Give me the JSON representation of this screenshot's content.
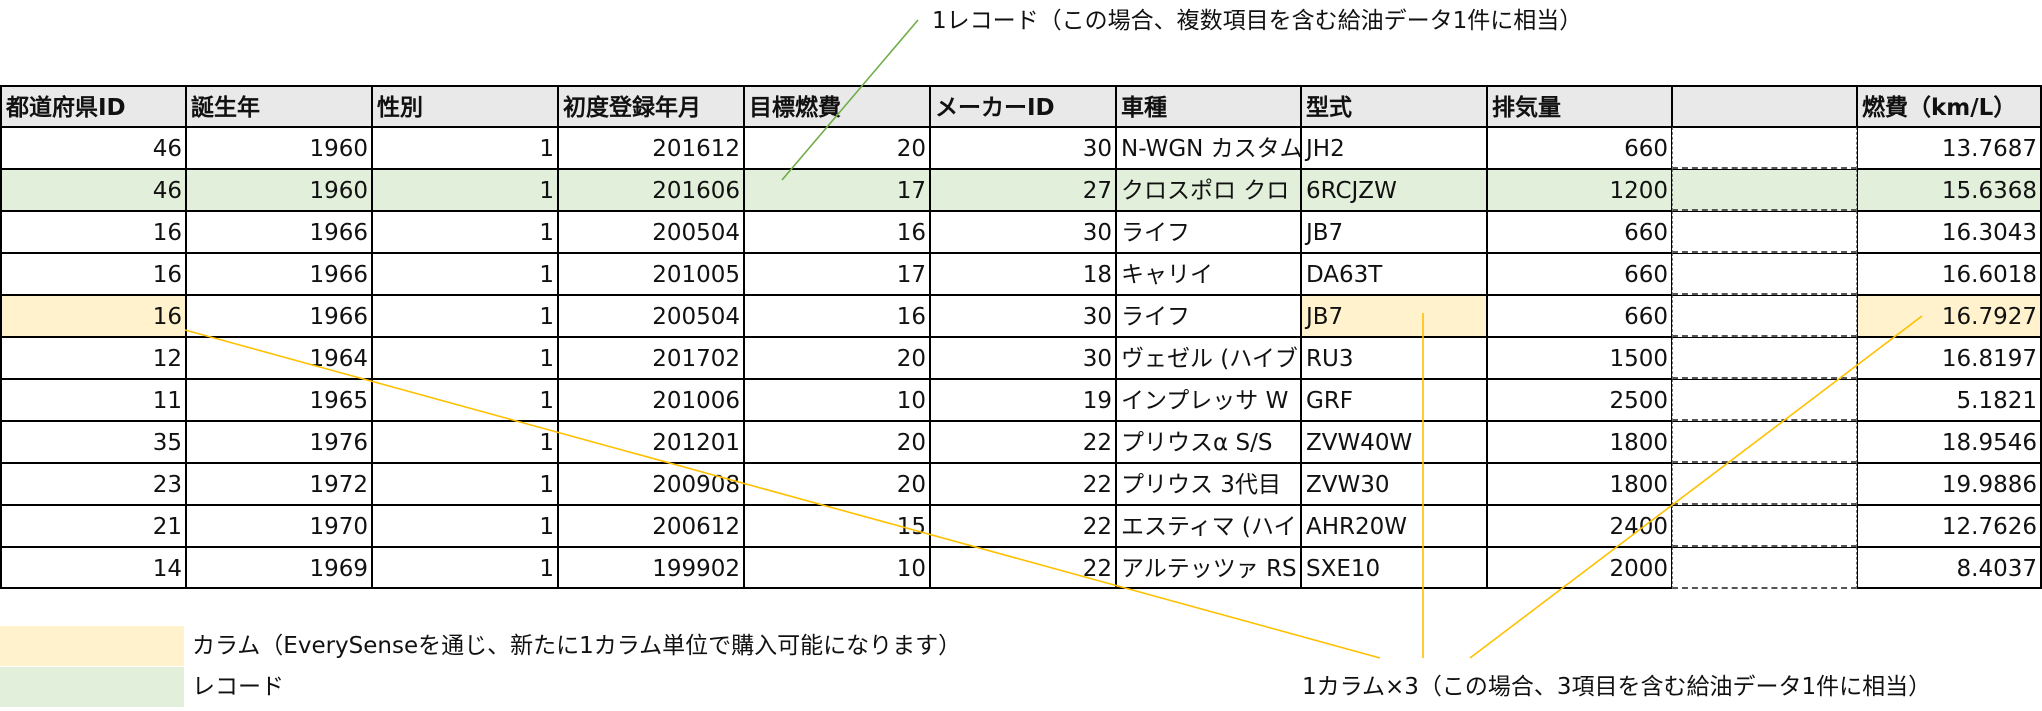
{
  "table": {
    "headers": [
      "都道府県ID",
      "誕生年",
      "性別",
      "初度登録年月",
      "目標燃費",
      "メーカーID",
      "車種",
      "型式",
      "排気量",
      "",
      "燃費（km/L）"
    ],
    "rows": [
      [
        "46",
        "1960",
        "1",
        "201612",
        "20",
        "30",
        "N-WGN カスタム",
        "JH2",
        "660",
        "",
        "13.7687"
      ],
      [
        "46",
        "1960",
        "1",
        "201606",
        "17",
        "27",
        "クロスポロ クロ",
        "6RCJZW",
        "1200",
        "",
        "15.6368"
      ],
      [
        "16",
        "1966",
        "1",
        "200504",
        "16",
        "30",
        "ライフ",
        "JB7",
        "660",
        "",
        "16.3043"
      ],
      [
        "16",
        "1966",
        "1",
        "201005",
        "17",
        "18",
        "キャリイ",
        "DA63T",
        "660",
        "",
        "16.6018"
      ],
      [
        "16",
        "1966",
        "1",
        "200504",
        "16",
        "30",
        "ライフ",
        "JB7",
        "660",
        "",
        "16.7927"
      ],
      [
        "12",
        "1964",
        "1",
        "201702",
        "20",
        "30",
        "ヴェゼル (ハイブ",
        "RU3",
        "1500",
        "",
        "16.8197"
      ],
      [
        "11",
        "1965",
        "1",
        "201006",
        "10",
        "19",
        "インプレッサ W",
        "GRF",
        "2500",
        "",
        "5.1821"
      ],
      [
        "35",
        "1976",
        "1",
        "201201",
        "20",
        "22",
        "プリウスα S/S",
        "ZVW40W",
        "1800",
        "",
        "18.9546"
      ],
      [
        "23",
        "1972",
        "1",
        "200908",
        "20",
        "22",
        "プリウス 3代目",
        "ZVW30",
        "1800",
        "",
        "19.9886"
      ],
      [
        "21",
        "1970",
        "1",
        "200612",
        "15",
        "22",
        "エスティマ (ハイ",
        "AHR20W",
        "2400",
        "",
        "12.7626"
      ],
      [
        "14",
        "1969",
        "1",
        "199902",
        "10",
        "22",
        "アルテッツァ RS",
        "SXE10",
        "2000",
        "",
        "8.4037"
      ]
    ]
  },
  "annotations": {
    "record_note": "1レコード（この場合、複数項目を含む給油データ1件に相当）",
    "column_note": "1カラム×3（この場合、3項目を含む給油データ1件に相当）"
  },
  "legend": {
    "column_label": "カラム（EverySenseを通じ、新たに1カラム単位で購入可能になります）",
    "record_label": "レコード"
  },
  "colors": {
    "record_highlight": "#e2efda",
    "column_highlight": "#fff2cc",
    "record_line": "#70ad47",
    "column_line": "#ffc000",
    "header_bg": "#e9e9e9"
  }
}
